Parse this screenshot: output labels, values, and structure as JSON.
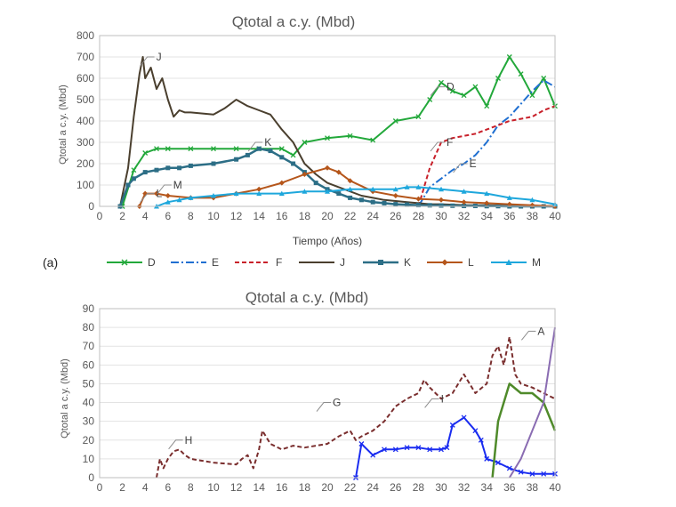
{
  "panel_label": "(a)",
  "colors": {
    "D": "#22a83a",
    "E": "#1f6fd1",
    "F": "#c8202a",
    "J": "#4a3f2e",
    "K": "#2c6e86",
    "L": "#b5561b",
    "M": "#1ea7dc",
    "A": "#8a6cb2",
    "B": "#4f8a2a",
    "C": "#2b7fd0",
    "G": "#1a2cf0",
    "H": "#7a2e2e",
    "I": "#3a6fd8"
  },
  "chart_data": [
    {
      "type": "line",
      "title": "Qtotal a c.y. (Mbd)",
      "xlabel": "Tiempo (Años)",
      "ylabel": "Qtotal a c.y. (Mbd)",
      "xlim": [
        0,
        40
      ],
      "ylim": [
        0,
        800
      ],
      "xticks": [
        "0",
        "2",
        "4",
        "6",
        "8",
        "10",
        "12",
        "14",
        "16",
        "18",
        "20",
        "22",
        "24",
        "26",
        "28",
        "30",
        "32",
        "34",
        "36",
        "38",
        "40"
      ],
      "yticks": [
        "0",
        "100",
        "200",
        "300",
        "400",
        "500",
        "600",
        "700",
        "800"
      ],
      "grid": "horizontal",
      "legend_position": "bottom",
      "series": [
        {
          "name": "D",
          "x": [
            2,
            3,
            4,
            5,
            6,
            8,
            10,
            12,
            14,
            16,
            17,
            18,
            20,
            22,
            24,
            26,
            28,
            29,
            30,
            31,
            32,
            33,
            34,
            35,
            36,
            37,
            38,
            39,
            40
          ],
          "y": [
            0,
            170,
            250,
            270,
            270,
            270,
            270,
            270,
            270,
            270,
            240,
            300,
            320,
            330,
            310,
            400,
            420,
            500,
            580,
            540,
            520,
            560,
            470,
            600,
            700,
            620,
            520,
            600,
            470
          ]
        },
        {
          "name": "E",
          "x": [
            28,
            29,
            30,
            31,
            32,
            33,
            34,
            35,
            36,
            37,
            38,
            39,
            40
          ],
          "y": [
            0,
            90,
            130,
            170,
            200,
            240,
            300,
            380,
            420,
            480,
            540,
            590,
            560
          ]
        },
        {
          "name": "F",
          "x": [
            28,
            29,
            30,
            31,
            32,
            33,
            34,
            35,
            36,
            37,
            38,
            39,
            40
          ],
          "y": [
            0,
            180,
            300,
            320,
            330,
            340,
            360,
            380,
            400,
            410,
            420,
            450,
            470
          ]
        },
        {
          "name": "J",
          "x": [
            1.8,
            2.5,
            3,
            3.5,
            3.8,
            4,
            4.5,
            5,
            5.5,
            6,
            6.5,
            7,
            7.5,
            8,
            10,
            11,
            12,
            13,
            14,
            15,
            16,
            17,
            18,
            19,
            20,
            21,
            22,
            23,
            24,
            25,
            26,
            27,
            28,
            29,
            30,
            31,
            32,
            33,
            34,
            35,
            36,
            37,
            38,
            39,
            40
          ],
          "y": [
            0,
            180,
            420,
            620,
            700,
            600,
            650,
            550,
            600,
            500,
            420,
            450,
            440,
            440,
            430,
            460,
            500,
            470,
            450,
            430,
            360,
            300,
            200,
            150,
            110,
            90,
            70,
            50,
            40,
            30,
            25,
            20,
            15,
            10,
            10,
            8,
            6,
            5,
            5,
            4,
            3,
            3,
            2,
            2,
            0
          ]
        },
        {
          "name": "K",
          "x": [
            1.8,
            2.5,
            3,
            4,
            5,
            6,
            7,
            8,
            10,
            12,
            13,
            14,
            15,
            16,
            17,
            18,
            19,
            20,
            21,
            22,
            23,
            24,
            25,
            26,
            27,
            28,
            29,
            30,
            31,
            32,
            33,
            34,
            35,
            36,
            37,
            38,
            39,
            40
          ],
          "y": [
            0,
            100,
            130,
            160,
            170,
            180,
            180,
            190,
            200,
            220,
            240,
            270,
            260,
            230,
            200,
            160,
            110,
            80,
            60,
            40,
            30,
            20,
            15,
            10,
            8,
            6,
            5,
            4,
            3,
            2,
            2,
            1,
            1,
            0,
            0,
            0,
            0,
            0
          ]
        },
        {
          "name": "L",
          "x": [
            3.5,
            4,
            5,
            6,
            8,
            10,
            12,
            14,
            16,
            18,
            20,
            21,
            22,
            24,
            26,
            28,
            30,
            32,
            34,
            36,
            38,
            40
          ],
          "y": [
            0,
            60,
            60,
            50,
            40,
            40,
            60,
            80,
            110,
            150,
            180,
            160,
            120,
            70,
            50,
            35,
            30,
            20,
            15,
            10,
            5,
            0
          ]
        },
        {
          "name": "M",
          "x": [
            5,
            6,
            7,
            8,
            10,
            12,
            14,
            16,
            18,
            20,
            22,
            24,
            26,
            27,
            28,
            30,
            32,
            34,
            36,
            38,
            40
          ],
          "y": [
            0,
            20,
            30,
            40,
            50,
            60,
            60,
            60,
            70,
            70,
            80,
            80,
            80,
            90,
            90,
            80,
            70,
            60,
            40,
            30,
            10
          ]
        }
      ],
      "annotations": [
        {
          "text": "J",
          "x": 4.5,
          "y": 700
        },
        {
          "text": "K",
          "x": 14,
          "y": 300
        },
        {
          "text": "L",
          "x": 4.5,
          "y": 60
        },
        {
          "text": "M",
          "x": 6,
          "y": 100
        },
        {
          "text": "D",
          "x": 30,
          "y": 560
        },
        {
          "text": "F",
          "x": 30,
          "y": 300
        },
        {
          "text": "E",
          "x": 32,
          "y": 200
        }
      ]
    },
    {
      "type": "line",
      "title": "Qtotal a c.y. (Mbd)",
      "xlabel": "",
      "ylabel": "Qtotal a c.y. (Mbd)",
      "xlim": [
        0,
        40
      ],
      "ylim": [
        0,
        90
      ],
      "xticks": [
        "0",
        "2",
        "4",
        "6",
        "8",
        "10",
        "12",
        "14",
        "16",
        "18",
        "20",
        "22",
        "24",
        "26",
        "28",
        "30",
        "32",
        "34",
        "36",
        "38",
        "40"
      ],
      "yticks": [
        "0",
        "10",
        "20",
        "30",
        "40",
        "50",
        "60",
        "70",
        "80",
        "90"
      ],
      "grid": "horizontal",
      "series": [
        {
          "key": "H",
          "x": [
            5,
            5.3,
            5.6,
            6,
            6.5,
            7,
            7.5,
            8,
            10,
            12,
            12.5,
            13,
            13.5,
            14,
            14.3,
            15,
            16,
            17,
            18,
            19,
            20,
            21,
            22,
            22.5,
            23,
            24,
            25,
            26,
            27,
            28,
            28.5,
            29,
            30,
            31,
            32,
            33,
            34,
            34.5,
            35,
            35.5,
            36,
            36.5,
            37,
            38,
            39,
            40
          ],
          "y": [
            0,
            10,
            5,
            10,
            14,
            15,
            12,
            10,
            8,
            7,
            10,
            12,
            5,
            15,
            25,
            18,
            15,
            17,
            16,
            17,
            18,
            22,
            25,
            20,
            22,
            25,
            30,
            38,
            42,
            45,
            52,
            48,
            42,
            45,
            55,
            45,
            50,
            65,
            70,
            60,
            75,
            55,
            50,
            48,
            45,
            42
          ]
        },
        {
          "key": "G",
          "x": [
            22.5,
            23,
            24,
            25,
            26,
            27,
            28,
            29,
            30,
            30.5,
            31,
            32,
            33,
            33.5,
            34,
            35,
            36,
            37,
            38,
            39,
            40
          ],
          "y": [
            0,
            18,
            12,
            15,
            15,
            16,
            16,
            15,
            15,
            16,
            28,
            32,
            25,
            20,
            10,
            8,
            5,
            3,
            2,
            2,
            2
          ]
        },
        {
          "key": "B",
          "x": [
            34.5,
            35,
            36,
            37,
            38,
            39,
            40
          ],
          "y": [
            0,
            30,
            50,
            45,
            45,
            40,
            25
          ]
        },
        {
          "key": "A",
          "x": [
            36,
            37,
            38,
            39,
            39.5,
            40
          ],
          "y": [
            0,
            10,
            25,
            40,
            60,
            80
          ]
        }
      ],
      "annotations": [
        {
          "text": "H",
          "x": 7,
          "y": 20
        },
        {
          "text": "G",
          "x": 20,
          "y": 40
        },
        {
          "text": "I",
          "x": 29.5,
          "y": 42
        },
        {
          "text": "A",
          "x": 38,
          "y": 78
        }
      ]
    }
  ]
}
